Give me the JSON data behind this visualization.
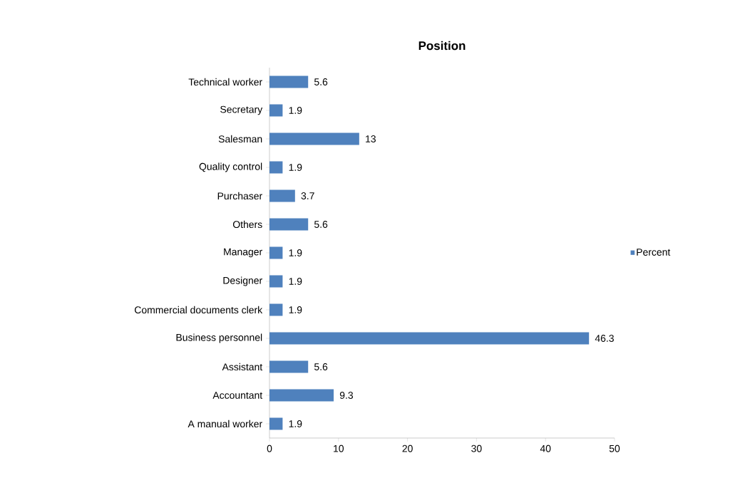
{
  "chart_data": {
    "type": "bar",
    "orientation": "horizontal",
    "title": "Position",
    "categories": [
      "Technical worker",
      "Secretary",
      "Salesman",
      "Quality control",
      "Purchaser",
      "Others",
      "Manager",
      "Designer",
      "Commercial documents clerk",
      "Business personnel",
      "Assistant",
      "Accountant",
      "A manual worker"
    ],
    "series": [
      {
        "name": "Percent",
        "color": "#4f81bd",
        "values": [
          5.6,
          1.9,
          13,
          1.9,
          3.7,
          5.6,
          1.9,
          1.9,
          1.9,
          46.3,
          5.6,
          9.3,
          1.9
        ]
      }
    ],
    "xlim": [
      0,
      50
    ],
    "xticks": [
      0,
      10,
      20,
      30,
      40,
      50
    ],
    "data_labels": true,
    "legend": "right",
    "grid": false
  }
}
